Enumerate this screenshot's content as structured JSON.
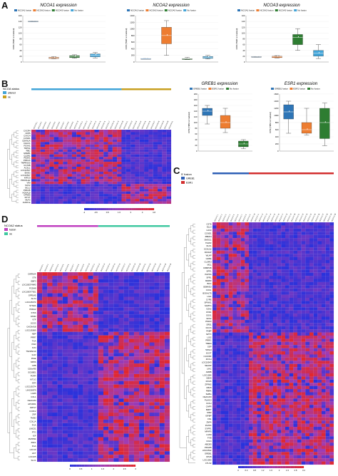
{
  "panels": {
    "A": {
      "letter": "A"
    },
    "B": {
      "letter": "B"
    },
    "C": {
      "letter": "C"
    },
    "D": {
      "letter": "D"
    }
  },
  "chart_data": [
    {
      "type": "box",
      "title": "NCOA1 expression",
      "ylabel": "CPM (TMM normalized)",
      "legend": [
        "NCOA1 fusion",
        "NCOA2 fusion",
        "NCOA3 fusion",
        "No fusion"
      ],
      "colors": [
        "#2e75b6",
        "#ed7d31",
        "#2e7d32",
        "#41a4d8"
      ],
      "yticks": [
        "0",
        "20",
        "40",
        "60",
        "80",
        "100",
        "120",
        "140",
        "160"
      ],
      "ylim": [
        0,
        160
      ],
      "boxes": [
        {
          "median": 140,
          "q1": 139,
          "q3": 141,
          "min": 139,
          "max": 141
        },
        {
          "median": 14,
          "q1": 12,
          "q3": 16,
          "min": 11,
          "max": 18
        },
        {
          "median": 18,
          "q1": 15,
          "q3": 22,
          "min": 13,
          "max": 25
        },
        {
          "median": 23,
          "q1": 18,
          "q3": 28,
          "min": 14,
          "max": 33
        }
      ]
    },
    {
      "type": "box",
      "title": "NCOA2 expression",
      "ylabel": "CPM (TMM normalized)",
      "legend": [
        "NCOA1 fusion",
        "NCOA2 fusion",
        "NCOA3 fusion",
        "No fusion"
      ],
      "colors": [
        "#2e75b6",
        "#ed7d31",
        "#2e7d32",
        "#41a4d8"
      ],
      "yticks": [
        "0",
        "200",
        "400",
        "600",
        "800",
        "1000",
        "1200",
        "1400"
      ],
      "ylim": [
        0,
        1400
      ],
      "boxes": [
        {
          "median": 100,
          "q1": 95,
          "q3": 105,
          "min": 95,
          "max": 105
        },
        {
          "median": 800,
          "q1": 550,
          "q3": 1050,
          "min": 200,
          "max": 1250
        },
        {
          "median": 90,
          "q1": 75,
          "q3": 105,
          "min": 70,
          "max": 140
        },
        {
          "median": 140,
          "q1": 110,
          "q3": 165,
          "min": 90,
          "max": 200
        }
      ]
    },
    {
      "type": "box",
      "title": "NCOA3 expression",
      "ylabel": "CPM (TMM normalized)",
      "legend": [
        "NCOA1 fusion",
        "NCOA2 fusion",
        "NCOA3 fusion",
        "No fusion"
      ],
      "colors": [
        "#2e75b6",
        "#ed7d31",
        "#2e7d32",
        "#41a4d8"
      ],
      "yticks": [
        "0",
        "20",
        "40",
        "60",
        "80",
        "100",
        "120",
        "140",
        "160"
      ],
      "ylim": [
        0,
        160
      ],
      "boxes": [
        {
          "median": 18,
          "q1": 17,
          "q3": 19,
          "min": 17,
          "max": 19
        },
        {
          "median": 18,
          "q1": 15,
          "q3": 20,
          "min": 14,
          "max": 22
        },
        {
          "median": 85,
          "q1": 60,
          "q3": 95,
          "min": 40,
          "max": 115
        },
        {
          "median": 30,
          "q1": 20,
          "q3": 40,
          "min": 12,
          "max": 60
        }
      ]
    },
    {
      "type": "box",
      "title": "GREB1 expression",
      "ylabel": "CPM (TMM normalized)",
      "legend": [
        "GREB1 fusion",
        "ESR1 fusion",
        "No fusion"
      ],
      "colors": [
        "#2e75b6",
        "#ed7d31",
        "#2e7d32"
      ],
      "yticks": [
        "0",
        "20",
        "40",
        "60",
        "80",
        "100",
        "120",
        "140",
        "160",
        "180",
        "200"
      ],
      "ylim": [
        0,
        200
      ],
      "boxes": [
        {
          "median": 140,
          "q1": 125,
          "q3": 150,
          "min": 95,
          "max": 160
        },
        {
          "median": 100,
          "q1": 80,
          "q3": 125,
          "min": 65,
          "max": 150
        },
        {
          "median": 25,
          "q1": 15,
          "q3": 35,
          "min": 8,
          "max": 40
        }
      ]
    },
    {
      "type": "box",
      "title": "ESR1 expression",
      "ylabel": "CPM (TMM normalized)",
      "legend": [
        "GREB1 fusion",
        "ESR1 fusion",
        "No fusion"
      ],
      "colors": [
        "#2e75b6",
        "#ed7d31",
        "#2e7d32"
      ],
      "yticks": [
        "0",
        "200",
        "400",
        "600",
        "800",
        "1000",
        "1200",
        "1400",
        "1600"
      ],
      "ylim": [
        0,
        1600
      ],
      "boxes": [
        {
          "median": 1100,
          "q1": 900,
          "q3": 1300,
          "min": 500,
          "max": 1400
        },
        {
          "median": 600,
          "q1": 500,
          "q3": 800,
          "min": 450,
          "max": 1200
        },
        {
          "median": 800,
          "q1": 350,
          "q3": 1200,
          "min": 150,
          "max": 1350
        }
      ]
    },
    {
      "type": "heatmap",
      "panel": "B",
      "annotation_title": "NCOA status",
      "groups": [
        {
          "name": "altered",
          "color": "#41a4d8",
          "count": 20
        },
        {
          "name": "nk",
          "color": "#c8a020",
          "count": 11
        }
      ],
      "colorbar_ticks": [
        "-2",
        "-0.6",
        "0.8",
        "1.6",
        "3",
        "4",
        "4.8"
      ],
      "row_labels": [
        "CXCR4",
        "CD55",
        "CXXC4",
        "CCND1",
        "CDKN1A",
        "CHAC1",
        "FOXA1",
        "TRPS1",
        "RBC",
        "GREB1",
        "CLDN1",
        "PDZK1",
        "PRKCA",
        "TMPRSS3",
        "UGT2B",
        "ACSL1",
        "LOC10537",
        "ENSG",
        "LOC10537",
        "KRT23",
        "PRICKLE2",
        "VIM",
        "SOX2",
        "BCL2",
        "PRKCB",
        "HOXA10",
        "CPNE5",
        "MYCT",
        "MLF2",
        "AHNF1a"
      ]
    },
    {
      "type": "heatmap",
      "panel": "C",
      "annotation_title": "5' fusion",
      "groups": [
        {
          "name": "GREB1",
          "color": "#2e5fb6",
          "count": 9
        },
        {
          "name": "ESR1",
          "color": "#d22e2e",
          "count": 21
        }
      ],
      "colorbar_ticks": [
        "0",
        "0.4",
        "0.8",
        "1.2",
        "1.6",
        "2",
        "2.4",
        "2.8",
        "3.2"
      ],
      "row_labels": [
        "CST6",
        "ELL3",
        "CAV3",
        "CCND1",
        "ZBED4",
        "SMOC1",
        "TFAP2",
        "DLK1",
        "KCNJ12",
        "RASGP",
        "WLAP",
        "GDPE",
        "CLORO",
        "MCL",
        "CRMP1B",
        "SPP1",
        "PAPSS",
        "SFR1",
        "MMPR",
        "BOC",
        "SEMA3D",
        "COC1",
        "B3GALT5",
        "LGI1",
        "CYPE",
        "SPINK1",
        "SAPPG",
        "GZA2",
        "OXD1",
        "SOX1",
        "GFK2",
        "PMCD",
        "OR51",
        "DCCS",
        "FKBP",
        "NPTX",
        "LGI2",
        "PRRG",
        "TMEM",
        "SSP",
        "SNSAI",
        "SCOT",
        "C14ORF",
        "ZCCH",
        "LOC10543",
        "SELDR",
        "LINC",
        "ARRB",
        "LOC1054",
        "UBA5",
        "ROG5",
        "ZFPM2",
        "UBA5",
        "PBRA",
        "SHBG",
        "CEACAM",
        "PLAGO",
        "KCNJ",
        "CAPR",
        "BMP7",
        "MSR",
        "IGFBP",
        "FN1",
        "ZNF4",
        "PLPP4",
        "SYPP1",
        "MFAP5",
        "LGN9",
        "FYB",
        "COL6",
        "ABCB3",
        "PDGFB",
        "LINC0532",
        "GREB1",
        "OPLB",
        "LOC1053",
        "CTLS3"
      ]
    },
    {
      "type": "heatmap",
      "panel": "D",
      "annotation_title": "NCOA2 status",
      "groups": [
        {
          "name": "fusion",
          "color": "#c040c0",
          "count": 12
        },
        {
          "name": "nk",
          "color": "#40c8a0",
          "count": 14
        }
      ],
      "colorbar_ticks": [
        "0",
        "0.6",
        "1",
        "1.6",
        "2",
        "2.6",
        "3"
      ],
      "row_labels": [
        "CHRNA4",
        "ST6",
        "EBF3",
        "LOC105374843",
        "PCDH8",
        "LOC105377921",
        "GPR145",
        "ALX4",
        "LOC105373",
        "STSRA",
        "PKRA2",
        "STK6",
        "NTRR",
        "VTF",
        "SCG3",
        "CACNA1B",
        "LOC105069",
        "NEP",
        "PRR7",
        "TGA",
        "PGR",
        "SYD",
        "TNFRSF19",
        "IL1R",
        "PIGE",
        "NPRS",
        "CPB",
        "C18orf95",
        "SCUBE1",
        "PGFR",
        "KITLG",
        "NTR",
        "LOC105374",
        "LINC00879",
        "LGR5",
        "COL1",
        "CEACAM",
        "APCDD1",
        "KRT17",
        "FOXF2",
        "ZNF",
        "TMSD",
        "COL1A",
        "FGA",
        "LINC01",
        "PTG",
        "IGF",
        "PLPPR4",
        "ZNF1",
        "FGA",
        "LOC10",
        "HCT",
        "LOC105",
        "SLC1"
      ]
    }
  ]
}
